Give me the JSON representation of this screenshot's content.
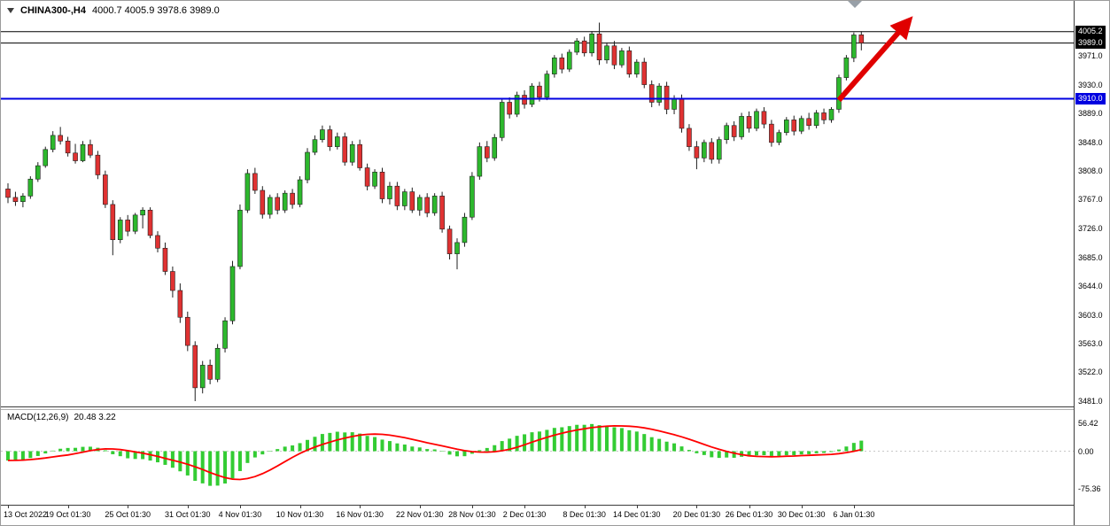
{
  "header": {
    "symbol": "CHINA300-,H4",
    "ohlc_text": "4000.7 4005.9 3978.6 3989.0"
  },
  "macd_panel": {
    "label": "MACD(12,26,9)",
    "values_text": "20.48 3.22"
  },
  "price_axis": {
    "badges": [
      {
        "text": "4005.2",
        "value": 4005.2,
        "bg": "#000000",
        "fg": "#ffffff"
      },
      {
        "text": "3989.0",
        "value": 3989.0,
        "bg": "#000000",
        "fg": "#ffffff"
      },
      {
        "text": "3910.0",
        "value": 3910.0,
        "bg": "#0000e0",
        "fg": "#ffffff"
      }
    ]
  },
  "colors": {
    "up": "#2db82d",
    "down": "#e03232",
    "wick": "#1f1f1f",
    "arrow": "#e00000",
    "level_blue": "#0000e0",
    "level_black": "#000000"
  },
  "chart_data": [
    {
      "type": "candlestick",
      "title": "CHINA300-,H4",
      "last_bar_ohlc": {
        "open": 4000.7,
        "high": 4005.9,
        "low": 3978.6,
        "close": 3989.0
      },
      "ylim": [
        3460,
        4040
      ],
      "y_ticks": [
        3971,
        3930,
        3889,
        3848,
        3808,
        3767,
        3726,
        3685,
        3644,
        3603,
        3563,
        3522,
        3481
      ],
      "hlines": [
        {
          "value": 4005.2,
          "color": "#000000",
          "width": 1
        },
        {
          "value": 3989.0,
          "color": "#000000",
          "width": 1
        },
        {
          "value": 3910.0,
          "color": "#0000e0",
          "width": 2,
          "over": true
        }
      ],
      "x_labels": [
        {
          "text": "13 Oct 2022",
          "bar": 0
        },
        {
          "text": "19 Oct 01:30",
          "bar": 8
        },
        {
          "text": "25 Oct 01:30",
          "bar": 16
        },
        {
          "text": "31 Oct 01:30",
          "bar": 24
        },
        {
          "text": "4 Nov 01:30",
          "bar": 31
        },
        {
          "text": "10 Nov 01:30",
          "bar": 39
        },
        {
          "text": "16 Nov 01:30",
          "bar": 47
        },
        {
          "text": "22 Nov 01:30",
          "bar": 55
        },
        {
          "text": "28 Nov 01:30",
          "bar": 62
        },
        {
          "text": "2 Dec 01:30",
          "bar": 69
        },
        {
          "text": "8 Dec 01:30",
          "bar": 77
        },
        {
          "text": "14 Dec 01:30",
          "bar": 84
        },
        {
          "text": "20 Dec 01:30",
          "bar": 92
        },
        {
          "text": "26 Dec 01:30",
          "bar": 99
        },
        {
          "text": "30 Dec 01:30",
          "bar": 106
        },
        {
          "text": "6 Jan 01:30",
          "bar": 113
        }
      ],
      "candles": [
        [
          3782,
          3790,
          3762,
          3770
        ],
        [
          3770,
          3778,
          3758,
          3764
        ],
        [
          3764,
          3776,
          3756,
          3772
        ],
        [
          3772,
          3800,
          3768,
          3796
        ],
        [
          3796,
          3820,
          3792,
          3815
        ],
        [
          3815,
          3842,
          3812,
          3838
        ],
        [
          3838,
          3864,
          3834,
          3858
        ],
        [
          3858,
          3870,
          3845,
          3850
        ],
        [
          3850,
          3856,
          3828,
          3833
        ],
        [
          3833,
          3846,
          3818,
          3822
        ],
        [
          3822,
          3850,
          3820,
          3845
        ],
        [
          3845,
          3852,
          3826,
          3830
        ],
        [
          3830,
          3836,
          3796,
          3802
        ],
        [
          3802,
          3808,
          3755,
          3760
        ],
        [
          3760,
          3766,
          3688,
          3710
        ],
        [
          3710,
          3742,
          3705,
          3738
        ],
        [
          3738,
          3745,
          3715,
          3722
        ],
        [
          3722,
          3748,
          3718,
          3745
        ],
        [
          3745,
          3756,
          3726,
          3752
        ],
        [
          3752,
          3756,
          3712,
          3716
        ],
        [
          3716,
          3722,
          3692,
          3698
        ],
        [
          3698,
          3706,
          3660,
          3665
        ],
        [
          3665,
          3672,
          3628,
          3638
        ],
        [
          3638,
          3648,
          3592,
          3600
        ],
        [
          3600,
          3608,
          3552,
          3560
        ],
        [
          3560,
          3566,
          3481,
          3500
        ],
        [
          3500,
          3538,
          3492,
          3532
        ],
        [
          3532,
          3540,
          3505,
          3512
        ],
        [
          3512,
          3562,
          3508,
          3556
        ],
        [
          3556,
          3600,
          3550,
          3595
        ],
        [
          3595,
          3680,
          3590,
          3672
        ],
        [
          3672,
          3760,
          3668,
          3752
        ],
        [
          3752,
          3810,
          3748,
          3804
        ],
        [
          3804,
          3812,
          3775,
          3780
        ],
        [
          3780,
          3786,
          3740,
          3746
        ],
        [
          3746,
          3774,
          3740,
          3770
        ],
        [
          3770,
          3776,
          3746,
          3752
        ],
        [
          3752,
          3780,
          3748,
          3776
        ],
        [
          3776,
          3782,
          3754,
          3760
        ],
        [
          3760,
          3800,
          3756,
          3795
        ],
        [
          3795,
          3840,
          3790,
          3834
        ],
        [
          3834,
          3858,
          3830,
          3852
        ],
        [
          3852,
          3872,
          3848,
          3866
        ],
        [
          3866,
          3872,
          3836,
          3842
        ],
        [
          3842,
          3862,
          3838,
          3856
        ],
        [
          3856,
          3862,
          3815,
          3820
        ],
        [
          3820,
          3850,
          3815,
          3845
        ],
        [
          3845,
          3852,
          3808,
          3812
        ],
        [
          3812,
          3818,
          3780,
          3786
        ],
        [
          3786,
          3810,
          3782,
          3806
        ],
        [
          3806,
          3812,
          3762,
          3768
        ],
        [
          3768,
          3792,
          3760,
          3786
        ],
        [
          3786,
          3792,
          3752,
          3758
        ],
        [
          3758,
          3782,
          3752,
          3778
        ],
        [
          3778,
          3784,
          3748,
          3752
        ],
        [
          3752,
          3774,
          3744,
          3770
        ],
        [
          3770,
          3776,
          3742,
          3748
        ],
        [
          3748,
          3776,
          3744,
          3772
        ],
        [
          3772,
          3778,
          3720,
          3725
        ],
        [
          3725,
          3730,
          3682,
          3690
        ],
        [
          3690,
          3712,
          3668,
          3706
        ],
        [
          3706,
          3748,
          3700,
          3742
        ],
        [
          3742,
          3806,
          3738,
          3800
        ],
        [
          3800,
          3848,
          3795,
          3842
        ],
        [
          3842,
          3850,
          3820,
          3826
        ],
        [
          3826,
          3860,
          3822,
          3855
        ],
        [
          3855,
          3910,
          3850,
          3905
        ],
        [
          3905,
          3912,
          3882,
          3888
        ],
        [
          3888,
          3920,
          3884,
          3915
        ],
        [
          3915,
          3922,
          3896,
          3902
        ],
        [
          3902,
          3932,
          3898,
          3928
        ],
        [
          3928,
          3934,
          3906,
          3912
        ],
        [
          3912,
          3950,
          3908,
          3945
        ],
        [
          3945,
          3972,
          3940,
          3968
        ],
        [
          3968,
          3974,
          3946,
          3952
        ],
        [
          3952,
          3980,
          3948,
          3976
        ],
        [
          3976,
          3996,
          3972,
          3992
        ],
        [
          3992,
          3998,
          3970,
          3975
        ],
        [
          3975,
          4006,
          3970,
          4002
        ],
        [
          4002,
          4018,
          3958,
          3965
        ],
        [
          3965,
          3990,
          3960,
          3985
        ],
        [
          3985,
          3992,
          3952,
          3958
        ],
        [
          3958,
          3982,
          3954,
          3978
        ],
        [
          3978,
          3984,
          3940,
          3945
        ],
        [
          3945,
          3966,
          3940,
          3962
        ],
        [
          3962,
          3968,
          3925,
          3930
        ],
        [
          3930,
          3936,
          3898,
          3905
        ],
        [
          3905,
          3932,
          3900,
          3928
        ],
        [
          3928,
          3934,
          3888,
          3895
        ],
        [
          3895,
          3915,
          3888,
          3910
        ],
        [
          3910,
          3916,
          3862,
          3868
        ],
        [
          3868,
          3874,
          3836,
          3842
        ],
        [
          3842,
          3850,
          3810,
          3826
        ],
        [
          3826,
          3852,
          3820,
          3848
        ],
        [
          3848,
          3854,
          3818,
          3824
        ],
        [
          3824,
          3856,
          3818,
          3852
        ],
        [
          3852,
          3876,
          3846,
          3872
        ],
        [
          3872,
          3878,
          3850,
          3856
        ],
        [
          3856,
          3890,
          3852,
          3885
        ],
        [
          3885,
          3892,
          3862,
          3868
        ],
        [
          3868,
          3896,
          3864,
          3892
        ],
        [
          3892,
          3898,
          3868,
          3874
        ],
        [
          3874,
          3880,
          3842,
          3848
        ],
        [
          3848,
          3866,
          3844,
          3862
        ],
        [
          3862,
          3884,
          3858,
          3880
        ],
        [
          3880,
          3886,
          3858,
          3864
        ],
        [
          3864,
          3886,
          3860,
          3882
        ],
        [
          3882,
          3890,
          3866,
          3872
        ],
        [
          3872,
          3894,
          3868,
          3890
        ],
        [
          3890,
          3896,
          3874,
          3880
        ],
        [
          3880,
          3898,
          3876,
          3895
        ],
        [
          3895,
          3944,
          3890,
          3940
        ],
        [
          3940,
          3972,
          3936,
          3968
        ],
        [
          3968,
          4004,
          3962,
          4000.5
        ],
        [
          4000.7,
          4005.9,
          3978.6,
          3989
        ]
      ],
      "annotation_arrow": {
        "from_bar": 111,
        "from_price": 3908,
        "to_bar": 121,
        "to_price": 4030,
        "color": "#e00000"
      }
    },
    {
      "type": "macd",
      "label": "MACD(12,26,9)",
      "fast": 12,
      "slow": 26,
      "signal_period": 9,
      "current_macd": 20.48,
      "current_signal": 3.22,
      "y_ticks": [
        56.42,
        0,
        -75.36
      ],
      "histogram_color": "#33cc33",
      "signal_color": "#ff0000",
      "source": "histogram computed from candlestick closes"
    }
  ]
}
